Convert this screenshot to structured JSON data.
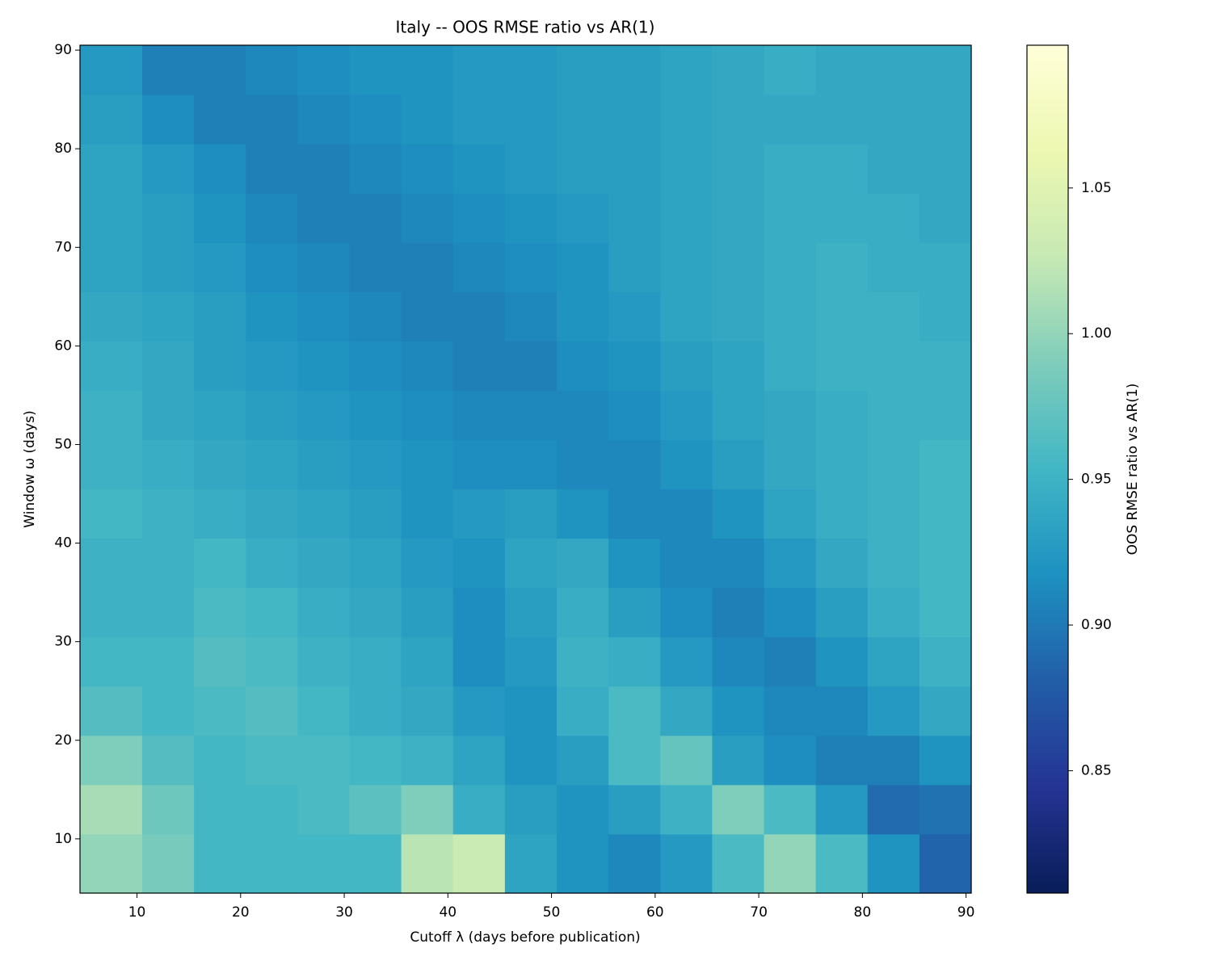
{
  "chart_data": {
    "type": "heatmap",
    "title": "Italy -- OOS RMSE ratio vs AR(1)",
    "xlabel": "Cutoff λ (days before publication)",
    "ylabel": "Window ω (days)",
    "xlim": [
      4.5,
      90.5
    ],
    "ylim": [
      4.5,
      90.5
    ],
    "xticks": [
      10,
      20,
      30,
      40,
      50,
      60,
      70,
      80,
      90
    ],
    "yticks": [
      10,
      20,
      30,
      40,
      50,
      60,
      70,
      80,
      90
    ],
    "xbins": [
      4.5,
      10.5,
      15.5,
      20.5,
      25.5,
      30.5,
      35.5,
      40.5,
      45.5,
      50.5,
      55.5,
      60.5,
      65.5,
      70.5,
      75.5,
      80.5,
      85.5,
      90.5
    ],
    "ybins": [
      4.5,
      10.5,
      15.5,
      20.5,
      25.5,
      30.5,
      35.5,
      40.5,
      45.5,
      50.5,
      55.5,
      60.5,
      65.5,
      70.5,
      75.5,
      80.5,
      85.5,
      90.5
    ],
    "colormap": "YlGnBu",
    "values": [
      [
        1.0,
        0.985,
        0.955,
        0.955,
        0.955,
        0.955,
        1.02,
        1.03,
        0.935,
        0.92,
        0.91,
        0.925,
        0.96,
        1.0,
        0.96,
        0.92,
        0.885
      ],
      [
        1.01,
        0.98,
        0.955,
        0.955,
        0.96,
        0.97,
        0.99,
        0.945,
        0.93,
        0.92,
        0.93,
        0.95,
        0.99,
        0.96,
        0.925,
        0.89,
        0.895
      ],
      [
        0.99,
        0.965,
        0.955,
        0.96,
        0.96,
        0.955,
        0.95,
        0.935,
        0.92,
        0.93,
        0.96,
        0.975,
        0.93,
        0.915,
        0.905,
        0.905,
        0.92
      ],
      [
        0.965,
        0.955,
        0.96,
        0.965,
        0.955,
        0.945,
        0.94,
        0.925,
        0.92,
        0.945,
        0.96,
        0.94,
        0.92,
        0.91,
        0.91,
        0.925,
        0.94
      ],
      [
        0.955,
        0.955,
        0.965,
        0.96,
        0.95,
        0.945,
        0.935,
        0.915,
        0.925,
        0.95,
        0.945,
        0.925,
        0.91,
        0.905,
        0.92,
        0.935,
        0.95
      ],
      [
        0.95,
        0.95,
        0.96,
        0.955,
        0.945,
        0.94,
        0.93,
        0.915,
        0.93,
        0.945,
        0.93,
        0.915,
        0.905,
        0.915,
        0.93,
        0.945,
        0.955
      ],
      [
        0.95,
        0.95,
        0.955,
        0.945,
        0.94,
        0.935,
        0.925,
        0.92,
        0.935,
        0.94,
        0.92,
        0.91,
        0.91,
        0.925,
        0.94,
        0.95,
        0.955
      ],
      [
        0.955,
        0.95,
        0.945,
        0.94,
        0.935,
        0.93,
        0.92,
        0.925,
        0.93,
        0.92,
        0.91,
        0.91,
        0.92,
        0.935,
        0.945,
        0.95,
        0.955
      ],
      [
        0.95,
        0.945,
        0.94,
        0.935,
        0.93,
        0.925,
        0.92,
        0.915,
        0.915,
        0.91,
        0.91,
        0.92,
        0.93,
        0.94,
        0.945,
        0.95,
        0.955
      ],
      [
        0.95,
        0.94,
        0.935,
        0.93,
        0.925,
        0.92,
        0.915,
        0.91,
        0.91,
        0.91,
        0.915,
        0.925,
        0.935,
        0.94,
        0.945,
        0.95,
        0.95
      ],
      [
        0.945,
        0.94,
        0.93,
        0.925,
        0.92,
        0.915,
        0.91,
        0.905,
        0.905,
        0.915,
        0.92,
        0.93,
        0.935,
        0.945,
        0.95,
        0.95,
        0.95
      ],
      [
        0.94,
        0.935,
        0.93,
        0.92,
        0.915,
        0.91,
        0.905,
        0.905,
        0.91,
        0.92,
        0.925,
        0.935,
        0.94,
        0.945,
        0.95,
        0.95,
        0.945
      ],
      [
        0.935,
        0.93,
        0.925,
        0.915,
        0.91,
        0.905,
        0.905,
        0.91,
        0.915,
        0.92,
        0.93,
        0.935,
        0.94,
        0.945,
        0.95,
        0.945,
        0.945
      ],
      [
        0.935,
        0.93,
        0.92,
        0.91,
        0.905,
        0.905,
        0.91,
        0.915,
        0.92,
        0.925,
        0.93,
        0.935,
        0.94,
        0.945,
        0.945,
        0.945,
        0.94
      ],
      [
        0.935,
        0.925,
        0.915,
        0.905,
        0.905,
        0.91,
        0.915,
        0.92,
        0.925,
        0.93,
        0.93,
        0.935,
        0.94,
        0.945,
        0.945,
        0.94,
        0.94
      ],
      [
        0.93,
        0.915,
        0.905,
        0.905,
        0.91,
        0.915,
        0.92,
        0.925,
        0.925,
        0.93,
        0.93,
        0.935,
        0.94,
        0.94,
        0.94,
        0.94,
        0.94
      ],
      [
        0.925,
        0.905,
        0.905,
        0.91,
        0.915,
        0.92,
        0.92,
        0.925,
        0.925,
        0.93,
        0.93,
        0.935,
        0.94,
        0.945,
        0.94,
        0.94,
        0.94
      ]
    ],
    "colorbar": {
      "label": "OOS RMSE ratio vs AR(1)",
      "lim": [
        0.808,
        1.099
      ],
      "ticks": [
        0.85,
        {
          "value": 0.9,
          "label": "0.90"
        },
        0.95,
        {
          "value": 1.0,
          "label": "1.00"
        },
        1.05
      ]
    }
  }
}
